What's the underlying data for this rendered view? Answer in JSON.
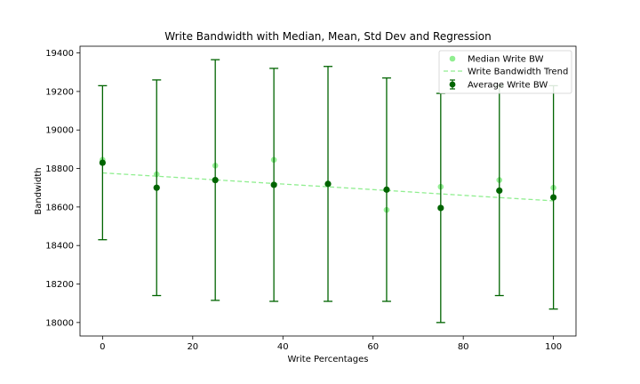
{
  "chart_data": {
    "type": "scatter",
    "title": "Write Bandwidth with Median, Mean, Std Dev and Regression",
    "xlabel": "Write Percentages",
    "ylabel": "Bandwidth",
    "xlim": [
      -5,
      105
    ],
    "ylim": [
      17930,
      19435
    ],
    "x_ticks": [
      0,
      20,
      40,
      60,
      80,
      100
    ],
    "y_ticks": [
      18000,
      18200,
      18400,
      18600,
      18800,
      19000,
      19200,
      19400
    ],
    "x": [
      0,
      12,
      25,
      38,
      50,
      63,
      75,
      88,
      100
    ],
    "series": [
      {
        "name": "Median Write BW",
        "kind": "scatter",
        "color": "#90ee90",
        "values": [
          18845,
          18770,
          18815,
          18845,
          18720,
          18585,
          18705,
          18740,
          18700
        ]
      },
      {
        "name": "Write Bandwidth Trend",
        "kind": "line",
        "style": "dashed",
        "color": "#90ee90",
        "values": [
          18777,
          18760,
          18741,
          18722,
          18705,
          18686,
          18668,
          18649,
          18632
        ]
      },
      {
        "name": "Average Write BW",
        "kind": "errorbar",
        "color": "#006400",
        "values": [
          18830,
          18700,
          18740,
          18715,
          18720,
          18690,
          18595,
          18685,
          18650
        ],
        "errors": [
          400,
          560,
          625,
          605,
          610,
          580,
          595,
          545,
          580
        ]
      }
    ],
    "legend_position": "top-right",
    "grid": false
  }
}
